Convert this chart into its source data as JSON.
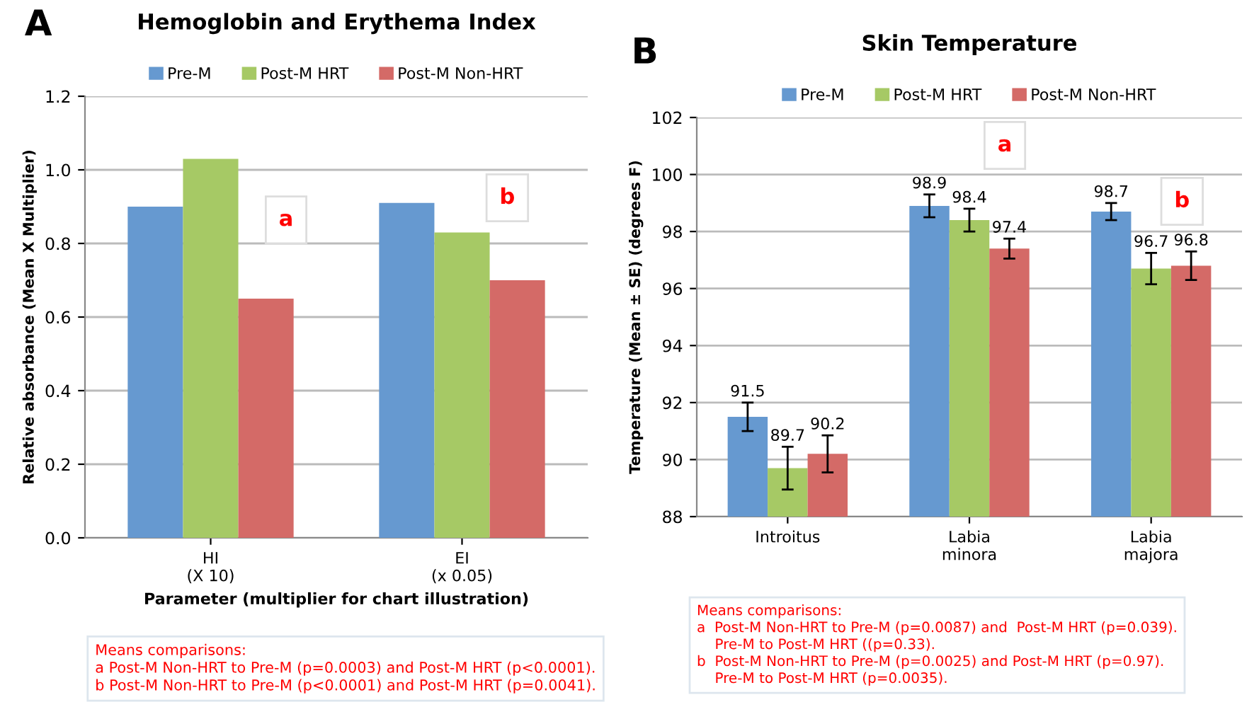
{
  "chart_data": [
    {
      "type": "bar",
      "title": "Hemoglobin and Erythema Index",
      "xlabel": "Parameter (multiplier for chart illustration)",
      "ylabel": "Relative absorbance (Mean X Multiplier)",
      "categories": [
        "HI\n(X 10)",
        "EI\n(x 0.05)"
      ],
      "series": [
        {
          "name": "Pre-M",
          "color": "#6699d0",
          "values": [
            0.9,
            0.91
          ]
        },
        {
          "name": "Post-M HRT",
          "color": "#a6c965",
          "values": [
            1.03,
            0.83
          ]
        },
        {
          "name": "Post-M Non-HRT",
          "color": "#d46a67",
          "values": [
            0.65,
            0.7
          ]
        }
      ],
      "ylim": [
        0,
        1.2
      ],
      "yticks": [
        {
          "value": 0,
          "label": "0.0"
        },
        {
          "value": 0.2,
          "label": "0.2"
        },
        {
          "value": 0.4,
          "label": "0.4"
        },
        {
          "value": 0.6,
          "label": "0.6"
        },
        {
          "value": 0.8,
          "label": "0.8"
        },
        {
          "value": 1.0,
          "label": "1.0"
        },
        {
          "value": 1.2,
          "label": "1.2"
        }
      ],
      "grid": "y",
      "legend": "top",
      "annotations": [
        "A",
        "a",
        "b",
        "Means comparisons:\na Post-M Non-HRT to Pre-M (p=0.0003) and Post-M HRT (p<0.0001).\nb Post-M Non-HRT to Pre-M (p<0.0001) and Post-M HRT (p=0.0041)."
      ]
    },
    {
      "type": "bar",
      "title": "Skin Temperature",
      "ylabel": "Temperature (Mean ± SE) (degrees F)",
      "categories": [
        "Introitus",
        "Labia\nminora",
        "Labia\nmajora"
      ],
      "series": [
        {
          "name": "Pre-M",
          "color": "#6699d0",
          "values": [
            91.5,
            98.9,
            98.7
          ],
          "errors": [
            0.5,
            0.4,
            0.3
          ]
        },
        {
          "name": "Post-M HRT",
          "color": "#a6c965",
          "values": [
            89.7,
            98.4,
            96.7
          ],
          "errors": [
            0.75,
            0.4,
            0.55
          ]
        },
        {
          "name": "Post-M Non-HRT",
          "color": "#d46a67",
          "values": [
            90.2,
            97.4,
            96.8
          ],
          "errors": [
            0.65,
            0.35,
            0.5
          ]
        }
      ],
      "ylim": [
        88,
        102
      ],
      "yticks": [
        88,
        90,
        92,
        94,
        96,
        98,
        100,
        102
      ],
      "grid": "y",
      "legend": "top",
      "data_labels": true,
      "annotations": [
        "B",
        "a",
        "b",
        "Means comparisons:\na  Post-M Non-HRT to Pre-M (p=0.0087) and  Post-M HRT (p=0.039).\n    Pre-M to Post-M HRT ((p=0.33).\nb  Post-M Non-HRT to Pre-M (p=0.0025) and Post-M HRT (p=0.97).\n    Pre-M to Post-M HRT (p=0.0035)."
      ]
    }
  ]
}
